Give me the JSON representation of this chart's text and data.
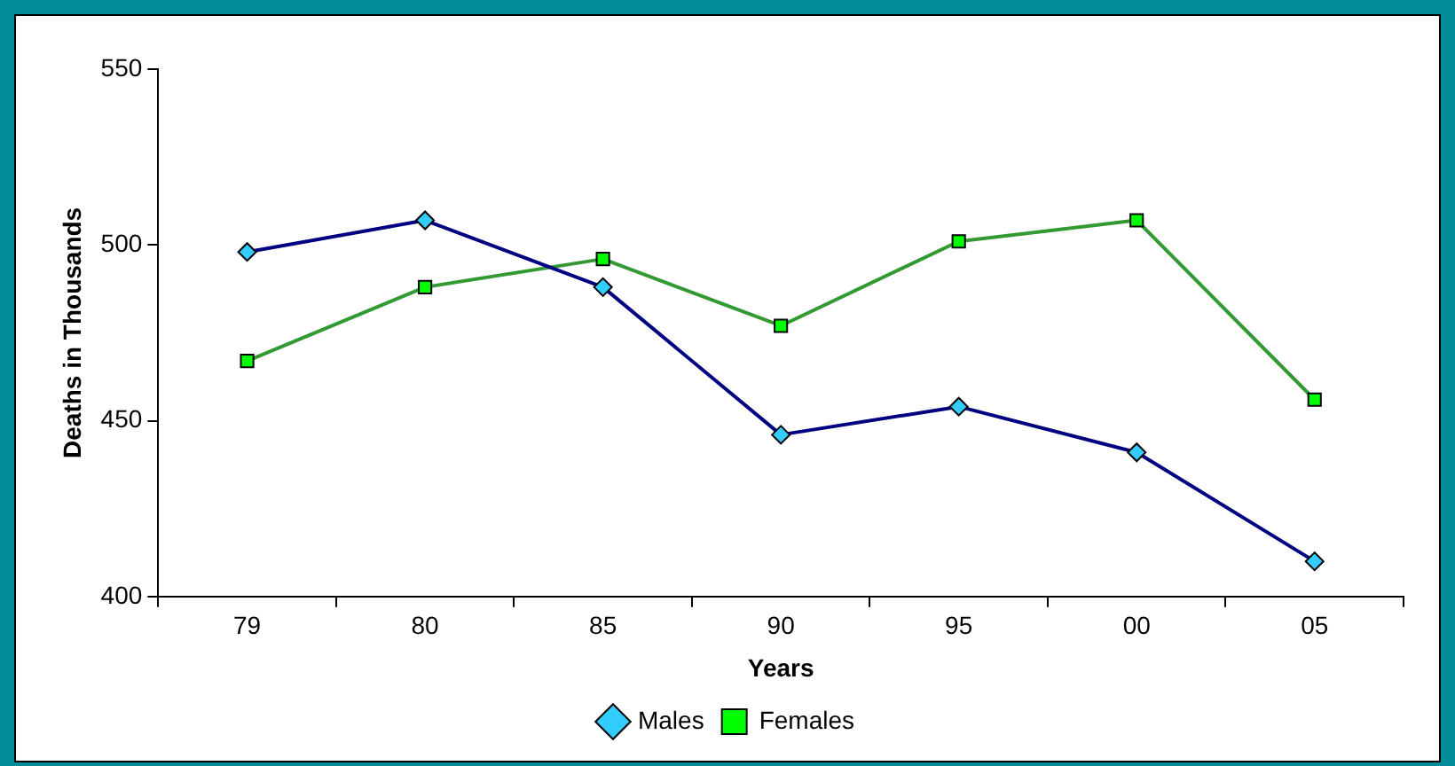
{
  "chart_data": {
    "type": "line",
    "xlabel": "Years",
    "ylabel": "Deaths in Thousands",
    "categories": [
      "79",
      "80",
      "85",
      "90",
      "95",
      "00",
      "05"
    ],
    "series": [
      {
        "name": "Males",
        "color": "#000080",
        "colors": [
          "#33ccff",
          "#33ccff",
          "#33ccff",
          "#33ccff",
          "#33ccff",
          "#33ccff",
          "#33ccff"
        ],
        "marker": "diamond",
        "values": [
          498,
          507,
          488,
          446,
          454,
          441,
          410
        ]
      },
      {
        "name": "Females",
        "color": "#339933",
        "colors": [
          "#00ff00",
          "#00ff00",
          "#00ff00",
          "#00ff00",
          "#00ff00",
          "#00ff00",
          "#00ff00"
        ],
        "marker": "square",
        "values": [
          467,
          488,
          496,
          477,
          501,
          507,
          456
        ]
      }
    ],
    "ylim": [
      400,
      550
    ],
    "yticks": [
      400,
      450,
      500,
      550
    ],
    "grid": false,
    "legend": "bottom",
    "line_style": "solid"
  }
}
